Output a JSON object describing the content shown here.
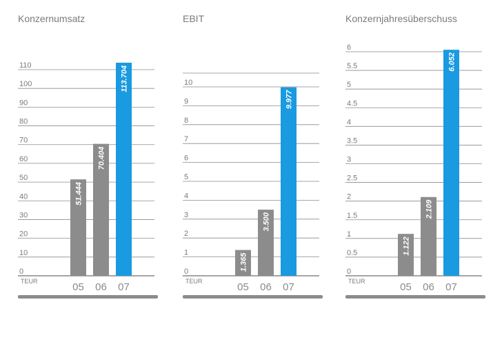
{
  "colors": {
    "gray_bar": "#8c8c8c",
    "blue_bar": "#1a9ae0",
    "grid": "#8a8a8a",
    "text": "#7a7a7a"
  },
  "chart_data": [
    {
      "type": "bar",
      "title": "Konzernumsatz",
      "unit": "TEUR",
      "categories": [
        "05",
        "06",
        "07"
      ],
      "values": [
        51444,
        70404,
        113704
      ],
      "data_labels": [
        "51.444",
        "70.404",
        "113.704"
      ],
      "scale_divisor": 1000,
      "ylim": [
        0,
        110
      ],
      "yticks": [
        "0",
        "10",
        "20",
        "30",
        "40",
        "50",
        "60",
        "70",
        "80",
        "90",
        "100",
        "110"
      ],
      "highlight_index": 2,
      "grid": true
    },
    {
      "type": "bar",
      "title": "EBIT",
      "unit": "TEUR",
      "categories": [
        "05",
        "06",
        "07"
      ],
      "values": [
        1365,
        3500,
        9977
      ],
      "data_labels": [
        "1.365",
        "3.500",
        "9.977"
      ],
      "scale_divisor": 1000,
      "ylim": [
        0,
        10
      ],
      "yticks": [
        "0",
        "1",
        "2",
        "3",
        "4",
        "5",
        "6",
        "7",
        "8",
        "9",
        "10"
      ],
      "highlight_index": 2,
      "grid": true
    },
    {
      "type": "bar",
      "title": "Konzernjahresüberschuss",
      "unit": "TEUR",
      "categories": [
        "05",
        "06",
        "07"
      ],
      "values": [
        1122,
        2109,
        6052
      ],
      "data_labels": [
        "1.122",
        "2.109",
        "6.052"
      ],
      "scale_divisor": 1000,
      "ylim": [
        0,
        6
      ],
      "yticks": [
        "0",
        "0.5",
        "1",
        "1.5",
        "2",
        "2.5",
        "3",
        "3.5",
        "4",
        "4.5",
        "5",
        "5.5",
        "6"
      ],
      "highlight_index": 2,
      "grid": true
    }
  ]
}
